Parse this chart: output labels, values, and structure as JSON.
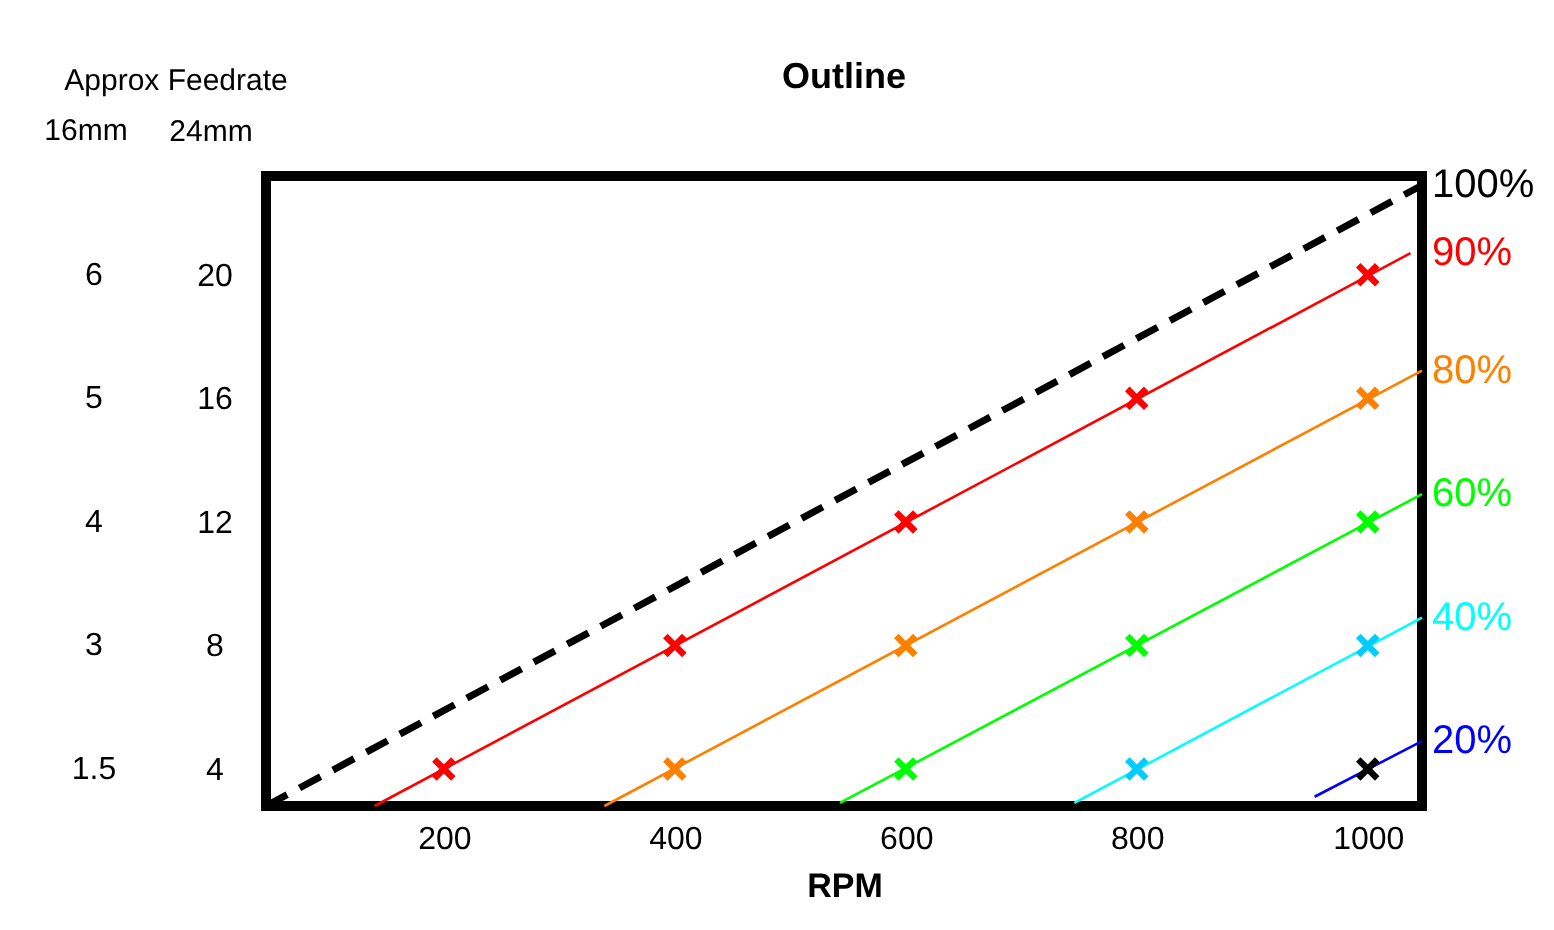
{
  "chart_data": {
    "type": "line",
    "title": "Outline",
    "xlabel": "RPM",
    "ylabel": "24mm",
    "annotations": [
      "Approx Feedrate",
      "16mm",
      "1.5",
      "3",
      "4",
      "5",
      "6"
    ],
    "xlim": [
      46,
      1047
    ],
    "xticks": [
      200,
      400,
      600,
      800,
      1000
    ],
    "ylim": [
      2.8,
      23.2
    ],
    "yticks": [
      4,
      8,
      12,
      16,
      20
    ],
    "series": [
      {
        "name": "100%",
        "line_style": "dashed",
        "color": "#000000",
        "x": [
          46,
          1047
        ],
        "values": [
          2.8,
          22.9
        ]
      },
      {
        "name": "90%",
        "line_style": "solid",
        "color": "#ff0000",
        "x": [
          140,
          1037
        ],
        "values": [
          2.8,
          20.7
        ]
      },
      {
        "name": "80%",
        "line_style": "solid",
        "color": "#ff7f00",
        "x": [
          339,
          1047
        ],
        "values": [
          2.8,
          16.9
        ]
      },
      {
        "name": "60%",
        "line_style": "solid",
        "color": "#00ff00",
        "x": [
          543,
          1047
        ],
        "values": [
          2.9,
          12.9
        ]
      },
      {
        "name": "40%",
        "line_style": "solid",
        "color": "#00ffff",
        "x": [
          746,
          1047
        ],
        "values": [
          2.9,
          8.9
        ]
      },
      {
        "name": "20%",
        "line_style": "solid",
        "color": "#0000ff",
        "x": [
          954,
          1047
        ],
        "values": [
          3.1,
          4.9
        ]
      },
      {
        "type": "scatter",
        "marker": "cross",
        "color": "#ff0000",
        "x": [
          200,
          400,
          600,
          800,
          1000
        ],
        "values": [
          4,
          8,
          12,
          16,
          20
        ]
      },
      {
        "type": "scatter",
        "marker": "cross",
        "color": "#ff7f00",
        "x": [
          400,
          600,
          800,
          1000
        ],
        "values": [
          4,
          8,
          12,
          16
        ]
      },
      {
        "type": "scatter",
        "marker": "cross",
        "color": "#00ff00",
        "x": [
          600,
          800,
          1000
        ],
        "values": [
          4,
          8,
          12
        ]
      },
      {
        "type": "scatter",
        "marker": "cross",
        "color": "#00ccff",
        "x": [
          800,
          1000
        ],
        "values": [
          4,
          8
        ]
      },
      {
        "type": "scatter",
        "marker": "cross",
        "color": "#000000",
        "x": [
          1000
        ],
        "values": [
          4
        ]
      }
    ]
  }
}
